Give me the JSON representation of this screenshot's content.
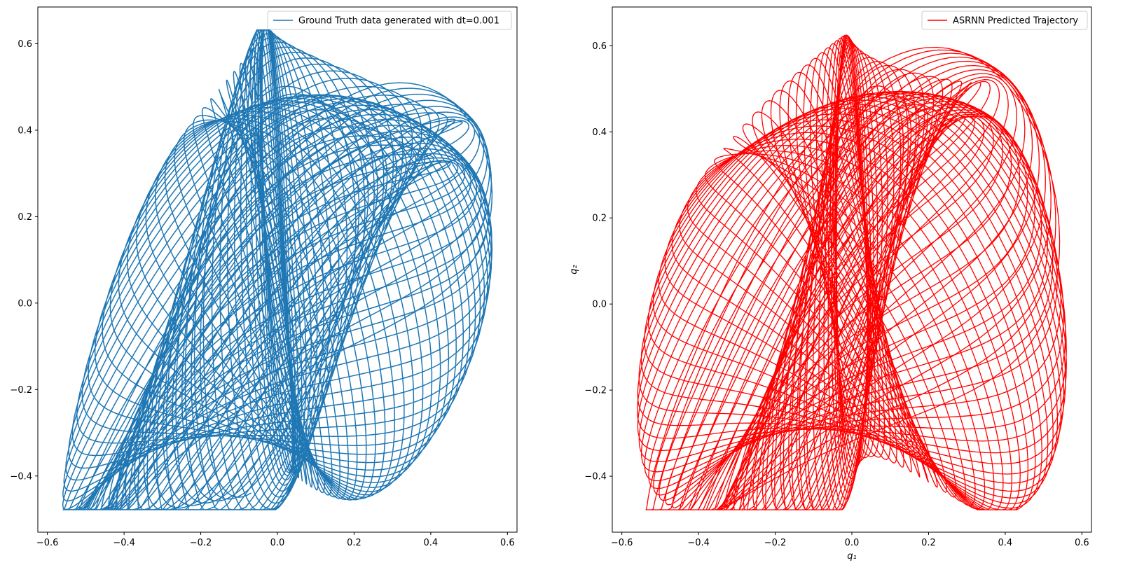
{
  "chart_data": [
    {
      "type": "line",
      "title": "",
      "xlabel": "",
      "ylabel": "",
      "xlim": [
        -0.625,
        0.625
      ],
      "ylim": [
        -0.53,
        0.685
      ],
      "xticks": [
        -0.6,
        -0.4,
        -0.2,
        0.0,
        0.2,
        0.4,
        0.6
      ],
      "xtick_labels": [
        "−0.6",
        "−0.4",
        "−0.2",
        "0.0",
        "0.2",
        "0.4",
        "0.6"
      ],
      "yticks": [
        -0.4,
        -0.2,
        0.0,
        0.2,
        0.4,
        0.6
      ],
      "ytick_labels": [
        "−0.4",
        "−0.2",
        "0.0",
        "0.2",
        "0.4",
        "0.6"
      ],
      "legend_position": "top-right",
      "grid": false,
      "series": [
        {
          "name": "Ground Truth data generated with dt=0.001",
          "color": "#1f77b4",
          "curve": "closed-orbit trajectory q2 vs q1 (Henon-Heiles-like)",
          "x_range": [
            -0.57,
            0.57
          ],
          "y_range": [
            -0.48,
            0.63
          ]
        }
      ]
    },
    {
      "type": "line",
      "title": "",
      "xlabel": "q₁",
      "ylabel": "q₂",
      "xlim": [
        -0.625,
        0.625
      ],
      "ylim": [
        -0.53,
        0.69
      ],
      "xticks": [
        -0.6,
        -0.4,
        -0.2,
        0.0,
        0.2,
        0.4,
        0.6
      ],
      "xtick_labels": [
        "−0.6",
        "−0.4",
        "−0.2",
        "0.0",
        "0.2",
        "0.4",
        "0.6"
      ],
      "yticks": [
        -0.4,
        -0.2,
        0.0,
        0.2,
        0.4,
        0.6
      ],
      "ytick_labels": [
        "−0.4",
        "−0.2",
        "0.0",
        "0.2",
        "0.4",
        "0.6"
      ],
      "legend_position": "top-right",
      "grid": false,
      "series": [
        {
          "name": "ASRNN Predicted Trajectory",
          "color": "#ff0000",
          "curve": "closed-orbit trajectory q2 vs q1 (Henon-Heiles-like)",
          "x_range": [
            -0.57,
            0.57
          ],
          "y_range": [
            -0.48,
            0.64
          ]
        }
      ]
    }
  ]
}
